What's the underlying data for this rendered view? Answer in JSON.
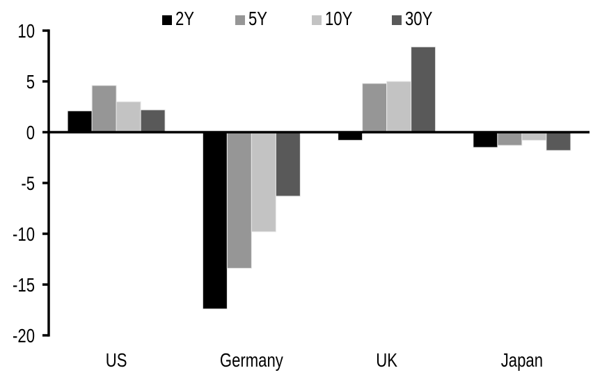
{
  "chart_data": {
    "type": "bar",
    "title": "",
    "categories": [
      "US",
      "Germany",
      "UK",
      "Japan"
    ],
    "series": [
      {
        "name": "2Y",
        "color": "#000000",
        "values": [
          2.1,
          -17.4,
          -0.8,
          -1.5
        ]
      },
      {
        "name": "5Y",
        "color": "#969696",
        "values": [
          4.6,
          -13.4,
          4.8,
          -1.3
        ]
      },
      {
        "name": "10Y",
        "color": "#c3c3c3",
        "values": [
          3.0,
          -9.8,
          5.0,
          -0.8
        ]
      },
      {
        "name": "30Y",
        "color": "#595959",
        "values": [
          2.2,
          -6.3,
          8.4,
          -1.8
        ]
      }
    ],
    "ylim": [
      -20,
      10
    ],
    "yticks": [
      10,
      5,
      0,
      -5,
      -10,
      -15,
      -20
    ],
    "xlabel": "",
    "ylabel": "",
    "grid": false,
    "legend_position": "top-center",
    "axis_color": "#000000",
    "bar_border_color": "#e8e8e8",
    "background_color": "#ffffff"
  }
}
